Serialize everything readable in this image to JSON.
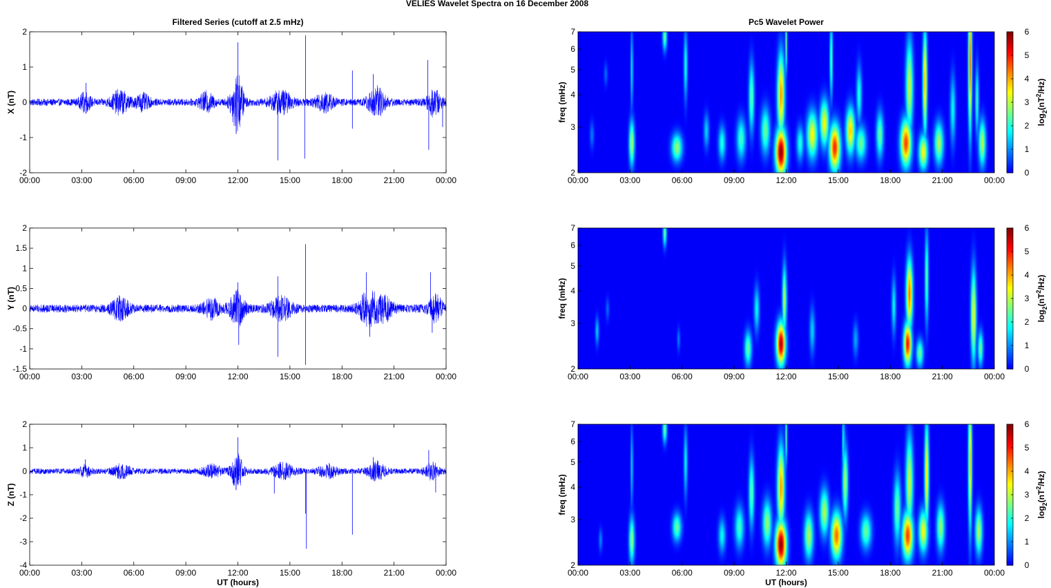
{
  "figure_title": "VELIES Wavelet Spectra on 16 December  2008",
  "chart_data": [
    {
      "type": "line",
      "panel": "X",
      "title": "Filtered Series (cutoff at 2.5 mHz)",
      "xlabel": "",
      "ylabel": "X (nT)",
      "xlim": [
        0,
        24
      ],
      "ylim": [
        -2,
        2
      ],
      "x_ticks": [
        "00:00",
        "03:00",
        "06:00",
        "09:00",
        "12:00",
        "15:00",
        "18:00",
        "21:00",
        "00:00"
      ],
      "y_ticks": [
        "2",
        "1",
        "0",
        "-1",
        "-2"
      ],
      "y_tick_values": [
        2,
        1,
        0,
        -1,
        -2
      ],
      "series_color": "#0000ff",
      "baseline_amplitude": 0.1,
      "bursts": [
        {
          "t": 3.2,
          "amp": 0.25,
          "width": 0.3
        },
        {
          "t": 5.2,
          "amp": 0.3,
          "width": 0.5
        },
        {
          "t": 6.5,
          "amp": 0.2,
          "width": 0.4
        },
        {
          "t": 10.2,
          "amp": 0.25,
          "width": 0.4
        },
        {
          "t": 11.95,
          "amp": 0.8,
          "width": 0.35
        },
        {
          "t": 14.5,
          "amp": 0.3,
          "width": 0.6
        },
        {
          "t": 17.0,
          "amp": 0.25,
          "width": 0.5
        },
        {
          "t": 20.0,
          "amp": 0.4,
          "width": 0.5
        },
        {
          "t": 23.3,
          "amp": 0.35,
          "width": 0.4
        }
      ],
      "spikes": [
        {
          "t": 3.25,
          "v": 0.55
        },
        {
          "t": 12.0,
          "v": 1.7
        },
        {
          "t": 11.9,
          "v": -0.9
        },
        {
          "t": 14.3,
          "v": -1.65
        },
        {
          "t": 15.9,
          "v": 1.9
        },
        {
          "t": 15.85,
          "v": -1.6
        },
        {
          "t": 18.6,
          "v": 0.9
        },
        {
          "t": 18.6,
          "v": -0.75
        },
        {
          "t": 19.8,
          "v": 0.8
        },
        {
          "t": 22.95,
          "v": 1.2
        },
        {
          "t": 23.0,
          "v": -1.35
        },
        {
          "t": 23.8,
          "v": -0.7
        }
      ]
    },
    {
      "type": "line",
      "panel": "Y",
      "title": "",
      "xlabel": "",
      "ylabel": "Y (nT)",
      "xlim": [
        0,
        24
      ],
      "ylim": [
        -1.5,
        2
      ],
      "x_ticks": [
        "00:00",
        "03:00",
        "06:00",
        "09:00",
        "12:00",
        "15:00",
        "18:00",
        "21:00",
        "00:00"
      ],
      "y_ticks": [
        "2",
        "1.5",
        "1",
        "0.5",
        "0",
        "-0.5",
        "-1",
        "-1.5"
      ],
      "y_tick_values": [
        2,
        1.5,
        1,
        0.5,
        0,
        -0.5,
        -1,
        -1.5
      ],
      "series_color": "#0000ff",
      "baseline_amplitude": 0.1,
      "bursts": [
        {
          "t": 5.2,
          "amp": 0.25,
          "width": 0.5
        },
        {
          "t": 10.5,
          "amp": 0.2,
          "width": 0.5
        },
        {
          "t": 11.95,
          "amp": 0.45,
          "width": 0.4
        },
        {
          "t": 14.5,
          "amp": 0.25,
          "width": 0.6
        },
        {
          "t": 19.5,
          "amp": 0.4,
          "width": 0.5
        },
        {
          "t": 20.4,
          "amp": 0.3,
          "width": 0.5
        },
        {
          "t": 23.4,
          "amp": 0.3,
          "width": 0.4
        }
      ],
      "spikes": [
        {
          "t": 12.0,
          "v": 0.65
        },
        {
          "t": 12.05,
          "v": -0.9
        },
        {
          "t": 14.3,
          "v": 0.8
        },
        {
          "t": 14.3,
          "v": -1.2
        },
        {
          "t": 15.9,
          "v": 1.6
        },
        {
          "t": 15.9,
          "v": -1.4
        },
        {
          "t": 19.4,
          "v": 0.9
        },
        {
          "t": 19.6,
          "v": -0.7
        },
        {
          "t": 23.1,
          "v": 0.9
        },
        {
          "t": 23.2,
          "v": -0.6
        }
      ]
    },
    {
      "type": "line",
      "panel": "Z",
      "title": "",
      "xlabel": "UT (hours)",
      "ylabel": "Z (nT)",
      "xlim": [
        0,
        24
      ],
      "ylim": [
        -4,
        2
      ],
      "x_ticks": [
        "00:00",
        "03:00",
        "06:00",
        "09:00",
        "12:00",
        "15:00",
        "18:00",
        "21:00",
        "00:00"
      ],
      "y_ticks": [
        "2",
        "1",
        "0",
        "-1",
        "-2",
        "-3",
        "-4"
      ],
      "y_tick_values": [
        2,
        1,
        0,
        -1,
        -2,
        -3,
        -4
      ],
      "series_color": "#0000ff",
      "baseline_amplitude": 0.12,
      "bursts": [
        {
          "t": 3.2,
          "amp": 0.2,
          "width": 0.3
        },
        {
          "t": 5.3,
          "amp": 0.25,
          "width": 0.5
        },
        {
          "t": 10.5,
          "amp": 0.25,
          "width": 0.5
        },
        {
          "t": 11.95,
          "amp": 0.7,
          "width": 0.35
        },
        {
          "t": 14.6,
          "amp": 0.3,
          "width": 0.6
        },
        {
          "t": 17.2,
          "amp": 0.25,
          "width": 0.5
        },
        {
          "t": 20.0,
          "amp": 0.35,
          "width": 0.5
        },
        {
          "t": 23.2,
          "amp": 0.3,
          "width": 0.4
        }
      ],
      "spikes": [
        {
          "t": 3.2,
          "v": 0.5
        },
        {
          "t": 12.0,
          "v": 1.45
        },
        {
          "t": 11.9,
          "v": -0.8
        },
        {
          "t": 14.1,
          "v": -0.95
        },
        {
          "t": 15.9,
          "v": -1.8
        },
        {
          "t": 15.95,
          "v": -3.3
        },
        {
          "t": 18.6,
          "v": -2.7
        },
        {
          "t": 19.8,
          "v": 0.6
        },
        {
          "t": 23.0,
          "v": 0.9
        },
        {
          "t": 23.4,
          "v": -0.9
        }
      ]
    },
    {
      "type": "heatmap",
      "panel": "X",
      "title": "Pc5 Wavelet Power",
      "xlabel": "",
      "ylabel": "freq (mHz)",
      "xlim": [
        0,
        24
      ],
      "ylim": [
        2,
        7
      ],
      "y_scale": "log",
      "x_ticks": [
        "00:00",
        "03:00",
        "06:00",
        "09:00",
        "12:00",
        "15:00",
        "18:00",
        "21:00",
        "00:00"
      ],
      "y_ticks": [
        "7",
        "6",
        "5",
        "4",
        "3",
        "2"
      ],
      "y_tick_values": [
        7,
        6,
        5,
        4,
        3,
        2
      ],
      "colorbar_label": "log2(nT2/Hz)",
      "colorbar_ticks": [
        6,
        5,
        4,
        3,
        2,
        1,
        0
      ],
      "colorbar_range": [
        0,
        6
      ],
      "colormap": "jet",
      "blobs": [
        {
          "t": 0.8,
          "f": 2.8,
          "p": 0.9,
          "tw": 0.12,
          "fw": 0.12
        },
        {
          "t": 1.6,
          "f": 4.8,
          "p": 0.8,
          "tw": 0.1,
          "fw": 0.1
        },
        {
          "t": 3.1,
          "f": 2.6,
          "p": 3.0,
          "tw": 0.15,
          "fw": 0.2
        },
        {
          "t": 3.1,
          "f": 5.0,
          "p": 2.0,
          "tw": 0.06,
          "fw": 0.35
        },
        {
          "t": 5.0,
          "f": 6.7,
          "p": 2.5,
          "tw": 0.12,
          "fw": 0.12
        },
        {
          "t": 5.7,
          "f": 2.5,
          "p": 2.8,
          "tw": 0.3,
          "fw": 0.12
        },
        {
          "t": 6.2,
          "f": 5.2,
          "p": 2.0,
          "tw": 0.1,
          "fw": 0.3
        },
        {
          "t": 7.4,
          "f": 2.9,
          "p": 1.5,
          "tw": 0.15,
          "fw": 0.15
        },
        {
          "t": 8.3,
          "f": 2.6,
          "p": 2.0,
          "tw": 0.2,
          "fw": 0.15
        },
        {
          "t": 9.4,
          "f": 2.7,
          "p": 2.2,
          "tw": 0.25,
          "fw": 0.18
        },
        {
          "t": 10.0,
          "f": 3.9,
          "p": 2.5,
          "tw": 0.15,
          "fw": 0.3
        },
        {
          "t": 10.8,
          "f": 2.9,
          "p": 2.5,
          "tw": 0.25,
          "fw": 0.2
        },
        {
          "t": 11.7,
          "f": 2.4,
          "p": 6.0,
          "tw": 0.3,
          "fw": 0.2
        },
        {
          "t": 11.7,
          "f": 4.0,
          "p": 4.2,
          "tw": 0.2,
          "fw": 0.35
        },
        {
          "t": 12.0,
          "f": 6.3,
          "p": 2.5,
          "tw": 0.06,
          "fw": 0.25
        },
        {
          "t": 12.8,
          "f": 2.6,
          "p": 2.0,
          "tw": 0.2,
          "fw": 0.15
        },
        {
          "t": 13.5,
          "f": 2.8,
          "p": 3.5,
          "tw": 0.3,
          "fw": 0.2
        },
        {
          "t": 14.2,
          "f": 3.1,
          "p": 3.5,
          "tw": 0.25,
          "fw": 0.2
        },
        {
          "t": 14.8,
          "f": 2.5,
          "p": 5.0,
          "tw": 0.3,
          "fw": 0.2
        },
        {
          "t": 14.6,
          "f": 5.5,
          "p": 2.5,
          "tw": 0.08,
          "fw": 0.35
        },
        {
          "t": 15.7,
          "f": 2.9,
          "p": 3.8,
          "tw": 0.25,
          "fw": 0.2
        },
        {
          "t": 16.2,
          "f": 4.0,
          "p": 2.0,
          "tw": 0.15,
          "fw": 0.25
        },
        {
          "t": 16.3,
          "f": 2.6,
          "p": 2.5,
          "tw": 0.3,
          "fw": 0.15
        },
        {
          "t": 17.4,
          "f": 2.8,
          "p": 2.5,
          "tw": 0.2,
          "fw": 0.2
        },
        {
          "t": 18.9,
          "f": 2.6,
          "p": 4.8,
          "tw": 0.3,
          "fw": 0.2
        },
        {
          "t": 19.1,
          "f": 4.3,
          "p": 3.2,
          "tw": 0.2,
          "fw": 0.4
        },
        {
          "t": 19.9,
          "f": 2.4,
          "p": 3.5,
          "tw": 0.25,
          "fw": 0.15
        },
        {
          "t": 20.0,
          "f": 4.5,
          "p": 4.0,
          "tw": 0.12,
          "fw": 0.45
        },
        {
          "t": 20.8,
          "f": 2.6,
          "p": 3.0,
          "tw": 0.25,
          "fw": 0.18
        },
        {
          "t": 21.6,
          "f": 3.5,
          "p": 1.8,
          "tw": 0.15,
          "fw": 0.3
        },
        {
          "t": 22.6,
          "f": 5.3,
          "p": 4.5,
          "tw": 0.1,
          "fw": 0.6
        },
        {
          "t": 23.3,
          "f": 2.6,
          "p": 3.0,
          "tw": 0.2,
          "fw": 0.2
        },
        {
          "t": 23.0,
          "f": 3.8,
          "p": 2.2,
          "tw": 0.1,
          "fw": 0.3
        }
      ]
    },
    {
      "type": "heatmap",
      "panel": "Y",
      "title": "",
      "xlabel": "",
      "ylabel": "freq (mHz)",
      "xlim": [
        0,
        24
      ],
      "ylim": [
        2,
        7
      ],
      "y_scale": "log",
      "x_ticks": [
        "00:00",
        "03:00",
        "06:00",
        "09:00",
        "12:00",
        "15:00",
        "18:00",
        "21:00",
        "00:00"
      ],
      "y_ticks": [
        "7",
        "6",
        "5",
        "4",
        "3",
        "2"
      ],
      "y_tick_values": [
        7,
        6,
        5,
        4,
        3,
        2
      ],
      "colorbar_label": "log2(nT2/Hz)",
      "colorbar_ticks": [
        6,
        5,
        4,
        3,
        2,
        1,
        0
      ],
      "colorbar_range": [
        0,
        6
      ],
      "colormap": "jet",
      "blobs": [
        {
          "t": 1.1,
          "f": 2.8,
          "p": 1.5,
          "tw": 0.1,
          "fw": 0.12
        },
        {
          "t": 1.7,
          "f": 3.4,
          "p": 0.8,
          "tw": 0.1,
          "fw": 0.1
        },
        {
          "t": 5.0,
          "f": 6.7,
          "p": 2.5,
          "tw": 0.1,
          "fw": 0.12
        },
        {
          "t": 5.8,
          "f": 2.6,
          "p": 1.0,
          "tw": 0.08,
          "fw": 0.1
        },
        {
          "t": 9.8,
          "f": 2.4,
          "p": 2.5,
          "tw": 0.2,
          "fw": 0.15
        },
        {
          "t": 10.3,
          "f": 3.4,
          "p": 1.8,
          "tw": 0.15,
          "fw": 0.2
        },
        {
          "t": 11.7,
          "f": 2.5,
          "p": 5.8,
          "tw": 0.25,
          "fw": 0.18
        },
        {
          "t": 11.9,
          "f": 3.7,
          "p": 3.0,
          "tw": 0.12,
          "fw": 0.3
        },
        {
          "t": 13.5,
          "f": 2.8,
          "p": 1.5,
          "tw": 0.15,
          "fw": 0.2
        },
        {
          "t": 16.0,
          "f": 2.6,
          "p": 1.2,
          "tw": 0.15,
          "fw": 0.15
        },
        {
          "t": 18.2,
          "f": 3.5,
          "p": 1.8,
          "tw": 0.12,
          "fw": 0.25
        },
        {
          "t": 19.0,
          "f": 2.5,
          "p": 5.2,
          "tw": 0.22,
          "fw": 0.18
        },
        {
          "t": 19.1,
          "f": 3.9,
          "p": 4.5,
          "tw": 0.18,
          "fw": 0.3
        },
        {
          "t": 19.7,
          "f": 2.3,
          "p": 2.5,
          "tw": 0.2,
          "fw": 0.12
        },
        {
          "t": 20.1,
          "f": 4.5,
          "p": 2.5,
          "tw": 0.1,
          "fw": 0.4
        },
        {
          "t": 22.8,
          "f": 3.2,
          "p": 3.5,
          "tw": 0.15,
          "fw": 0.4
        },
        {
          "t": 23.2,
          "f": 2.4,
          "p": 2.5,
          "tw": 0.15,
          "fw": 0.15
        }
      ]
    },
    {
      "type": "heatmap",
      "panel": "Z",
      "title": "",
      "xlabel": "UT (hours)",
      "ylabel": "freq (mHz)",
      "xlim": [
        0,
        24
      ],
      "ylim": [
        2,
        7
      ],
      "y_scale": "log",
      "x_ticks": [
        "00:00",
        "03:00",
        "06:00",
        "09:00",
        "12:00",
        "15:00",
        "18:00",
        "21:00",
        "00:00"
      ],
      "y_ticks": [
        "7",
        "6",
        "5",
        "4",
        "3",
        "2"
      ],
      "y_tick_values": [
        7,
        6,
        5,
        4,
        3,
        2
      ],
      "colorbar_label": "log2(nT2/Hz)",
      "colorbar_ticks": [
        6,
        5,
        4,
        3,
        2,
        1,
        0
      ],
      "colorbar_range": [
        0,
        6
      ],
      "colormap": "jet",
      "blobs": [
        {
          "t": 1.3,
          "f": 2.5,
          "p": 1.0,
          "tw": 0.1,
          "fw": 0.1
        },
        {
          "t": 3.1,
          "f": 2.5,
          "p": 2.8,
          "tw": 0.15,
          "fw": 0.2
        },
        {
          "t": 3.1,
          "f": 4.8,
          "p": 1.8,
          "tw": 0.06,
          "fw": 0.35
        },
        {
          "t": 5.0,
          "f": 6.7,
          "p": 2.5,
          "tw": 0.12,
          "fw": 0.12
        },
        {
          "t": 5.7,
          "f": 2.8,
          "p": 2.5,
          "tw": 0.25,
          "fw": 0.12
        },
        {
          "t": 6.2,
          "f": 5.0,
          "p": 1.8,
          "tw": 0.1,
          "fw": 0.3
        },
        {
          "t": 8.3,
          "f": 2.6,
          "p": 1.8,
          "tw": 0.2,
          "fw": 0.15
        },
        {
          "t": 9.3,
          "f": 2.8,
          "p": 2.2,
          "tw": 0.25,
          "fw": 0.18
        },
        {
          "t": 10.0,
          "f": 3.8,
          "p": 2.5,
          "tw": 0.15,
          "fw": 0.3
        },
        {
          "t": 10.9,
          "f": 2.9,
          "p": 2.8,
          "tw": 0.25,
          "fw": 0.2
        },
        {
          "t": 11.7,
          "f": 2.4,
          "p": 6.0,
          "tw": 0.3,
          "fw": 0.2
        },
        {
          "t": 11.7,
          "f": 4.0,
          "p": 4.2,
          "tw": 0.2,
          "fw": 0.35
        },
        {
          "t": 12.0,
          "f": 6.3,
          "p": 2.3,
          "tw": 0.06,
          "fw": 0.25
        },
        {
          "t": 13.3,
          "f": 2.6,
          "p": 3.0,
          "tw": 0.25,
          "fw": 0.2
        },
        {
          "t": 14.2,
          "f": 3.2,
          "p": 3.0,
          "tw": 0.25,
          "fw": 0.2
        },
        {
          "t": 14.9,
          "f": 2.6,
          "p": 4.5,
          "tw": 0.3,
          "fw": 0.2
        },
        {
          "t": 15.4,
          "f": 4.2,
          "p": 3.0,
          "tw": 0.15,
          "fw": 0.3
        },
        {
          "t": 15.3,
          "f": 6.0,
          "p": 2.2,
          "tw": 0.06,
          "fw": 0.3
        },
        {
          "t": 16.6,
          "f": 2.7,
          "p": 2.5,
          "tw": 0.3,
          "fw": 0.15
        },
        {
          "t": 18.4,
          "f": 3.3,
          "p": 2.5,
          "tw": 0.2,
          "fw": 0.3
        },
        {
          "t": 19.0,
          "f": 2.6,
          "p": 4.8,
          "tw": 0.3,
          "fw": 0.2
        },
        {
          "t": 19.1,
          "f": 4.2,
          "p": 3.2,
          "tw": 0.2,
          "fw": 0.4
        },
        {
          "t": 19.9,
          "f": 2.7,
          "p": 3.5,
          "tw": 0.25,
          "fw": 0.18
        },
        {
          "t": 20.1,
          "f": 4.5,
          "p": 3.8,
          "tw": 0.12,
          "fw": 0.45
        },
        {
          "t": 20.9,
          "f": 2.8,
          "p": 2.8,
          "tw": 0.22,
          "fw": 0.2
        },
        {
          "t": 22.6,
          "f": 5.0,
          "p": 3.8,
          "tw": 0.1,
          "fw": 0.6
        },
        {
          "t": 23.1,
          "f": 2.7,
          "p": 3.0,
          "tw": 0.2,
          "fw": 0.2
        }
      ]
    }
  ]
}
